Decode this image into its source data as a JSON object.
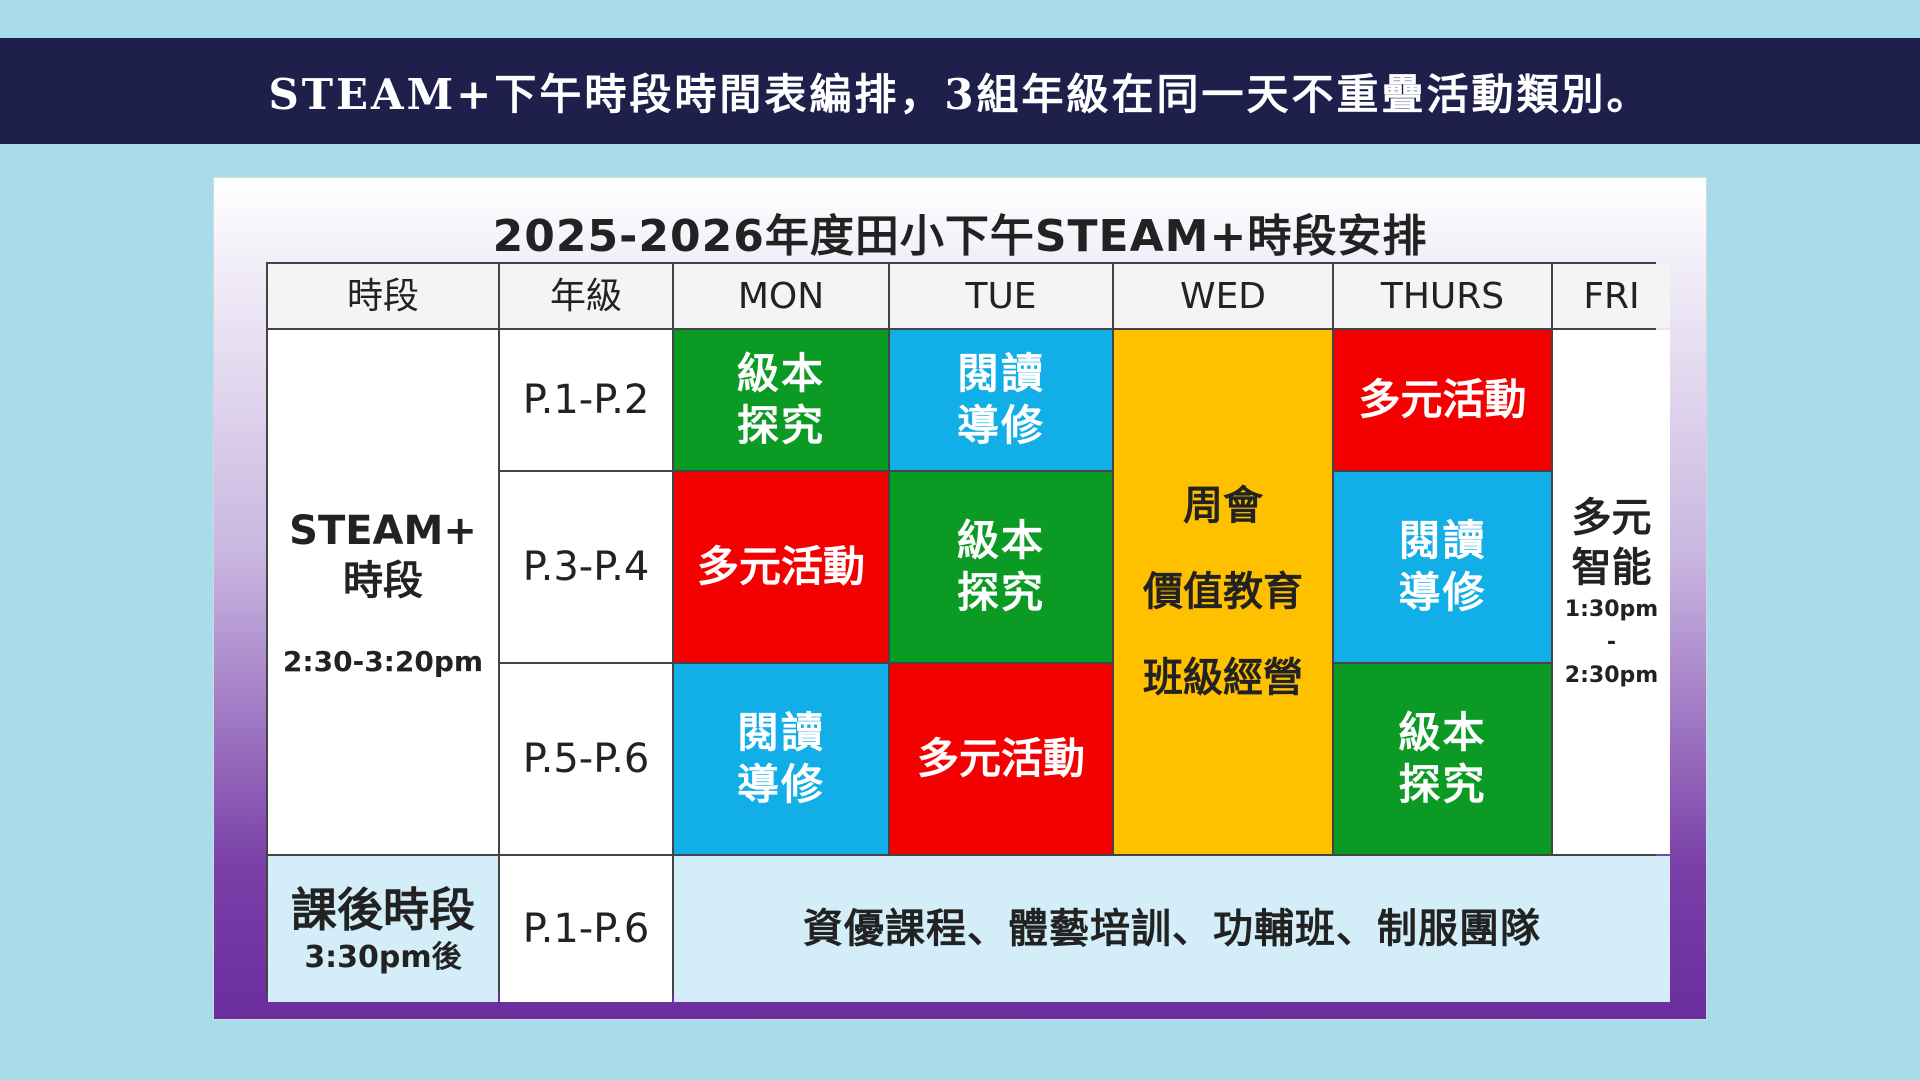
{
  "banner": {
    "text": "STEAM+下午時段時間表編排，3組年級在同一天不重疊活動類別。"
  },
  "card": {
    "title": "2025-2026年度田小下午STEAM+時段安排"
  },
  "table": {
    "headers": [
      "時段",
      "年級",
      "MON",
      "TUE",
      "WED",
      "THURS",
      "FRI"
    ],
    "steam_period": {
      "title_line1": "STEAM+",
      "title_line2": "時段",
      "time": "2:30-3:20pm"
    },
    "grades": [
      "P.1-P.2",
      "P.3-P.4",
      "P.5-P.6"
    ],
    "rows": [
      {
        "mon": {
          "line1": "級本",
          "line2": "探究",
          "color": "#0b9a24"
        },
        "tue": {
          "line1": "閱讀",
          "line2": "導修",
          "color": "#12aee8"
        },
        "thurs": {
          "text": "多元活動",
          "color": "#f40000"
        }
      },
      {
        "mon": {
          "text": "多元活動",
          "color": "#f40000"
        },
        "tue": {
          "line1": "級本",
          "line2": "探究",
          "color": "#0b9a24"
        },
        "thurs": {
          "line1": "閱讀",
          "line2": "導修",
          "color": "#12aee8"
        }
      },
      {
        "mon": {
          "line1": "閱讀",
          "line2": "導修",
          "color": "#12aee8"
        },
        "tue": {
          "text": "多元活動",
          "color": "#f40000"
        },
        "thurs": {
          "line1": "級本",
          "line2": "探究",
          "color": "#0b9a24"
        }
      }
    ],
    "wed": {
      "items": [
        "周會",
        "價值教育",
        "班級經營"
      ],
      "color": "#ffc000"
    },
    "fri": {
      "line1": "多元",
      "line2": "智能",
      "time_start": "1:30pm",
      "time_dash": "-",
      "time_end": "2:30pm"
    },
    "after_school": {
      "title": "課後時段",
      "time": "3:30pm後",
      "grade": "P.1-P.6",
      "activities": "資優課程、體藝培訓、功輔班、制服團隊"
    }
  }
}
